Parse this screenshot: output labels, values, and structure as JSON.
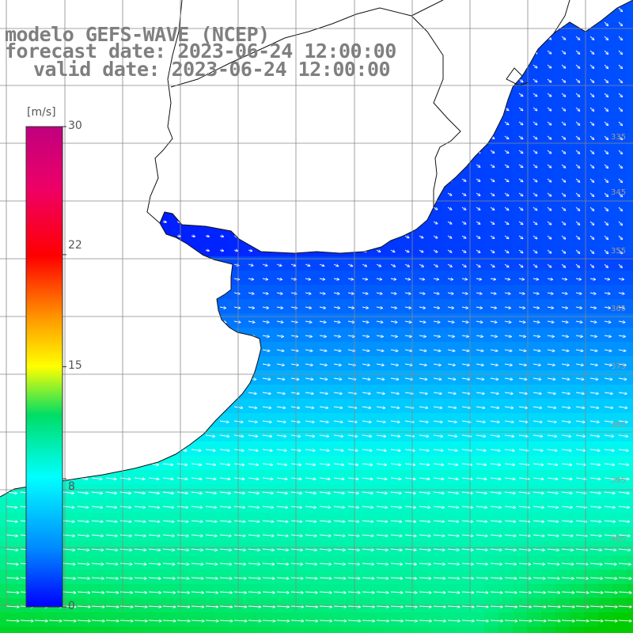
{
  "title": {
    "line1": "modelo GEFS-WAVE (NCEP)",
    "line2": "forecast date: 2023-06-24 12:00:00",
    "line3": "valid date: 2023-06-24 12:00:00"
  },
  "colorbar": {
    "unit": "[m/s]",
    "tick_labels": [
      "30",
      "22",
      "15",
      "8",
      "0"
    ],
    "tick_values": [
      30,
      22,
      15,
      8,
      0
    ],
    "min": 0,
    "max": 30,
    "colors": [
      "#0000ff",
      "#00aaff",
      "#00ffff",
      "#00cc00",
      "#ffff00",
      "#ff8800",
      "#ff0000",
      "#c0007f"
    ]
  },
  "map": {
    "lat_labels": [
      "335",
      "345",
      "355",
      "365",
      "375",
      "385",
      "395",
      "405"
    ],
    "field": "wind speed with direction vectors",
    "land_color": "#ffffff",
    "grid": true
  }
}
